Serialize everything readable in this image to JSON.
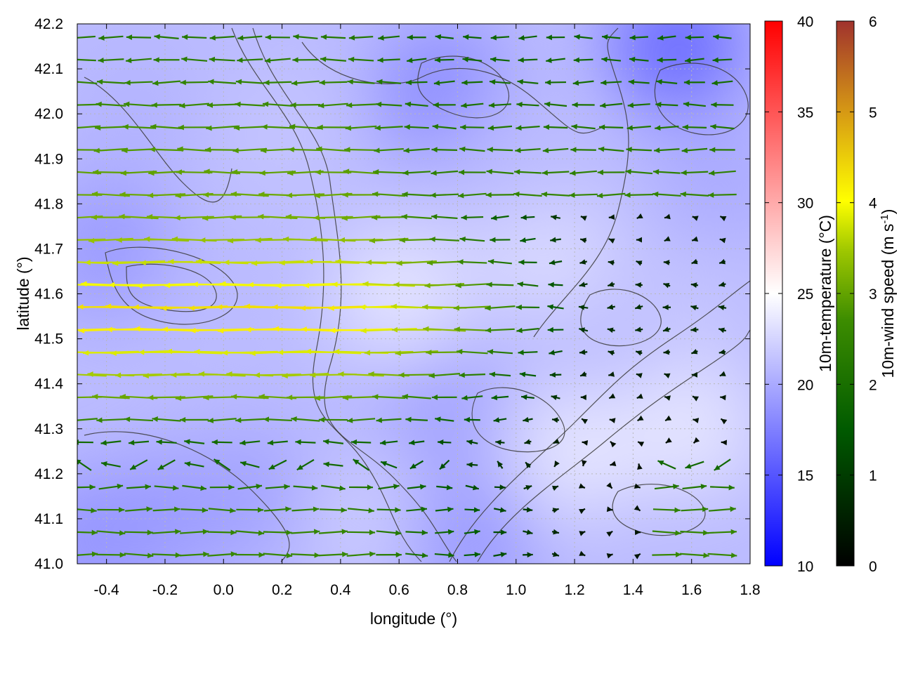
{
  "chart_data": {
    "type": "heatmap",
    "title": "",
    "xlabel": "longitude (°)",
    "ylabel": "latitude (°)",
    "xlim": [
      -0.5,
      1.8
    ],
    "ylim": [
      41.0,
      42.2
    ],
    "x_ticks": [
      "-0.4",
      "-0.2",
      "0.0",
      "0.2",
      "0.4",
      "0.6",
      "0.8",
      "1.0",
      "1.2",
      "1.4",
      "1.6",
      "1.8"
    ],
    "y_ticks": [
      "41.0",
      "41.1",
      "41.2",
      "41.3",
      "41.4",
      "41.5",
      "41.6",
      "41.7",
      "41.8",
      "41.9",
      "42.0",
      "42.1",
      "42.2"
    ],
    "grid": true,
    "temperature_colorbar": {
      "label": "10m-temperature (°C)",
      "range": [
        10,
        40
      ],
      "ticks": [
        "10",
        "15",
        "20",
        "25",
        "30",
        "35",
        "40"
      ],
      "colors": [
        "#0000ff",
        "#ffffff",
        "#ff0000"
      ]
    },
    "windspeed_colorbar": {
      "label": "10m-wind speed (m s",
      "label_sup": "-1",
      "label_end": ")",
      "range": [
        0,
        6
      ],
      "ticks": [
        "0",
        "1",
        "2",
        "3",
        "4",
        "5",
        "6"
      ],
      "colors": [
        "#000000",
        "#005a00",
        "#3c8c00",
        "#a0c800",
        "#ffff00",
        "#d79b14",
        "#a0322d"
      ]
    },
    "temperature_field": [
      {
        "lon": -0.45,
        "lat": 41.05,
        "t": 18.5
      },
      {
        "lon": -0.2,
        "lat": 41.1,
        "t": 19.0
      },
      {
        "lon": 0.1,
        "lat": 41.15,
        "t": 19.5
      },
      {
        "lon": 0.5,
        "lat": 41.1,
        "t": 22.0
      },
      {
        "lon": 0.85,
        "lat": 41.05,
        "t": 19.0
      },
      {
        "lon": 0.75,
        "lat": 41.35,
        "t": 19.5
      },
      {
        "lon": 1.2,
        "lat": 41.25,
        "t": 23.5
      },
      {
        "lon": 1.6,
        "lat": 41.3,
        "t": 23.5
      },
      {
        "lon": -0.4,
        "lat": 41.7,
        "t": 19.0
      },
      {
        "lon": 0.0,
        "lat": 41.6,
        "t": 21.0
      },
      {
        "lon": 0.6,
        "lat": 41.6,
        "t": 23.5
      },
      {
        "lon": 1.1,
        "lat": 41.7,
        "t": 23.0
      },
      {
        "lon": 1.6,
        "lat": 41.6,
        "t": 21.5
      },
      {
        "lon": -0.3,
        "lat": 42.0,
        "t": 20.5
      },
      {
        "lon": 0.2,
        "lat": 41.95,
        "t": 21.5
      },
      {
        "lon": 0.75,
        "lat": 42.05,
        "t": 18.0
      },
      {
        "lon": 1.0,
        "lat": 41.9,
        "t": 21.0
      },
      {
        "lon": 1.55,
        "lat": 42.15,
        "t": 16.0
      },
      {
        "lon": 1.7,
        "lat": 41.85,
        "t": 20.0
      }
    ],
    "wind_field": [
      {
        "lat": 42.15,
        "u": -1.6,
        "spd": 1.6
      },
      {
        "lat": 42.0,
        "u": -1.9,
        "spd": 2.0
      },
      {
        "lat": 41.85,
        "u": -2.3,
        "spd": 2.4
      },
      {
        "lat": 41.75,
        "u": -2.5,
        "spd": 2.6
      },
      {
        "lat": 41.65,
        "u": -3.4,
        "spd": 3.6
      },
      {
        "lat": 41.55,
        "u": -4.2,
        "spd": 4.5
      },
      {
        "lat": 41.45,
        "u": -3.2,
        "spd": 3.4
      },
      {
        "lat": 41.35,
        "u": -2.1,
        "spd": 2.2
      },
      {
        "lat": 41.25,
        "u": -1.0,
        "spd": 1.1
      },
      {
        "lat": 41.15,
        "u": 1.6,
        "spd": 1.7
      },
      {
        "lat": 41.05,
        "u": 1.8,
        "spd": 1.9
      }
    ]
  }
}
